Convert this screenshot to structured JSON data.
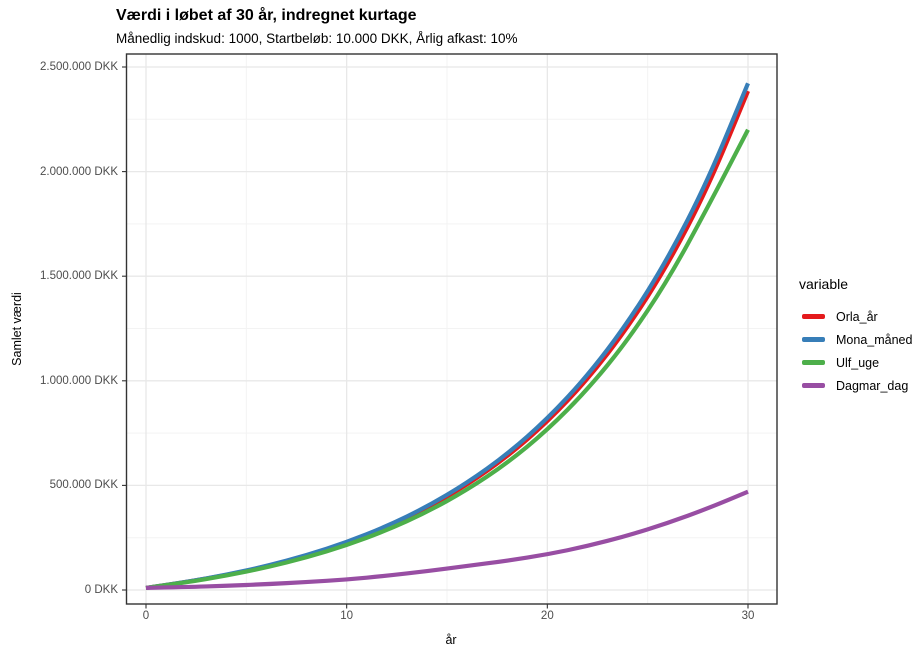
{
  "chart": {
    "title": "Værdi i løbet af 30 år, indregnet kurtage",
    "subtitle": "Månedlig indskud: 1000, Startbeløb: 10.000 DKK, Årlig afkast: 10%",
    "x_axis": {
      "title": "år",
      "ticks": [
        {
          "value": 0,
          "label": "0"
        },
        {
          "value": 10,
          "label": "10"
        },
        {
          "value": 20,
          "label": "20"
        },
        {
          "value": 30,
          "label": "30"
        }
      ],
      "minor": [
        5,
        15,
        25
      ]
    },
    "y_axis": {
      "title": "Samlet værdi",
      "ticks": [
        {
          "value": 0,
          "label": "0 DKK"
        },
        {
          "value": 500000,
          "label": "500.000 DKK"
        },
        {
          "value": 1000000,
          "label": "1.000.000 DKK"
        },
        {
          "value": 1500000,
          "label": "1.500.000 DKK"
        },
        {
          "value": 2000000,
          "label": "2.000.000 DKK"
        },
        {
          "value": 2500000,
          "label": "2.500.000 DKK"
        }
      ],
      "minor": [
        250000,
        750000,
        1250000,
        1750000,
        2250000
      ]
    },
    "legend": {
      "title": "variable"
    }
  },
  "colors": {
    "grid_major": "#e8e8e8",
    "grid_minor": "#f3f3f3",
    "panel_border": "#333333",
    "tick": "#333333",
    "tick_text": "#4d4d4d",
    "background": "#ffffff"
  },
  "chart_data": {
    "type": "line",
    "title": "Værdi i løbet af 30 år, indregnet kurtage",
    "subtitle": "Månedlig indskud: 1000, Startbeløb: 10.000 DKK, Årlig afkast: 10%",
    "xlabel": "år",
    "ylabel": "Samlet værdi",
    "xlim": [
      0,
      30
    ],
    "ylim": [
      0,
      2500000
    ],
    "grid": true,
    "legend_position": "right",
    "legend_title": "variable",
    "x": [
      0,
      2,
      4,
      6,
      8,
      10,
      12,
      14,
      16,
      18,
      20,
      22,
      24,
      26,
      28,
      30
    ],
    "series": [
      {
        "name": "Orla_år",
        "color": "#E41A1C",
        "values": [
          10000,
          37500,
          71500,
          112500,
          163000,
          224500,
          299500,
          391000,
          502500,
          637000,
          803000,
          1005500,
          1252500,
          1554000,
          1922000,
          2385000
        ]
      },
      {
        "name": "Mona_måned",
        "color": "#377EB8",
        "values": [
          10000,
          38000,
          72500,
          114500,
          166000,
          228500,
          305000,
          398000,
          512000,
          649000,
          818000,
          1024000,
          1276000,
          1583000,
          1958000,
          2422000
        ]
      },
      {
        "name": "Ulf_uge",
        "color": "#4DAF4A",
        "values": [
          10000,
          36000,
          68500,
          107500,
          155500,
          214000,
          285500,
          372500,
          478500,
          606500,
          764500,
          957500,
          1192500,
          1479500,
          1830000,
          2200000
        ]
      },
      {
        "name": "Dagmar_dag",
        "color": "#984EA3",
        "values": [
          10000,
          14000,
          20000,
          28000,
          38000,
          50000,
          68000,
          90000,
          115000,
          140000,
          170000,
          210000,
          260000,
          320000,
          390000,
          470000
        ]
      }
    ]
  }
}
